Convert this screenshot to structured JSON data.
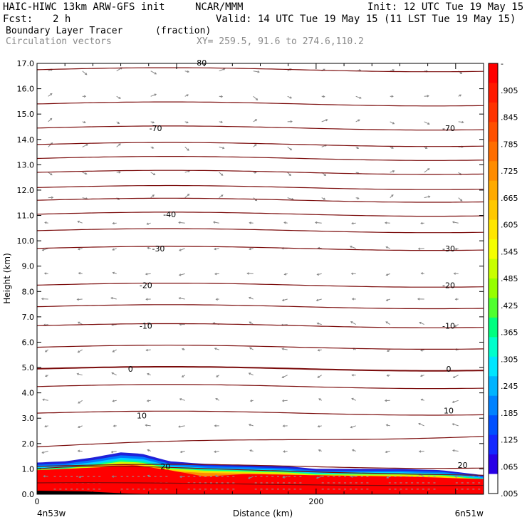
{
  "header": {
    "model": "HAIC-HIWC 13km ARW-GFS init",
    "org": "NCAR/MMM",
    "init": "Init: 12 UTC Tue 19 May 15",
    "fcst_label": "Fcst:",
    "fcst_value": "2 h",
    "valid": "Valid: 14 UTC Tue 19 May 15 (11 LST Tue 19 May 15)",
    "field": "Boundary Layer Tracer",
    "units": "(fraction)",
    "vectors": "Circulation vectors",
    "xy": "XY= 259.5, 91.6 to 274.6,110.2"
  },
  "chart_data": {
    "type": "heatmap",
    "title": "Boundary Layer Tracer",
    "xlabel": "Distance (km)",
    "ylabel": "Height (km)",
    "xlim": [
      0,
      320
    ],
    "ylim": [
      0,
      17
    ],
    "x_ticks": [
      "0",
      "200"
    ],
    "x_ticks_values": [
      0,
      200
    ],
    "y_ticks": [
      "0.0",
      "1.0",
      "2.0",
      "3.0",
      "4.0",
      "5.0",
      "6.0",
      "7.0",
      "8.0",
      "9.0",
      "10.0",
      "11.0",
      "12.0",
      "13.0",
      "14.0",
      "15.0",
      "16.0",
      "17.0"
    ],
    "y_tick_values": [
      0,
      1,
      2,
      3,
      4,
      5,
      6,
      7,
      8,
      9,
      10,
      11,
      12,
      13,
      14,
      15,
      16,
      17
    ],
    "x_endpoints": [
      "4n53w",
      "6n51w"
    ],
    "colorbar": {
      "labels": [
        "-",
        ".905",
        ".845",
        ".785",
        ".725",
        ".665",
        ".605",
        ".545",
        ".485",
        ".425",
        ".365",
        ".305",
        ".245",
        ".185",
        ".125",
        ".065",
        ".005"
      ],
      "colors": [
        "#ff0000",
        "#ff1a00",
        "#ff3300",
        "#ff5000",
        "#ff6e00",
        "#ff8c00",
        "#ffaa00",
        "#ffc800",
        "#ffe600",
        "#f5ff00",
        "#c8ff00",
        "#96ff00",
        "#50ff30",
        "#00ff80",
        "#00ffcc",
        "#00e6ff",
        "#00b4ff",
        "#0082ff",
        "#0050ff",
        "#1428ff",
        "#2800e6",
        "#ffffff"
      ]
    },
    "tracer_top_km": [
      {
        "x": 0,
        "h": 1.25
      },
      {
        "x": 20,
        "h": 1.3
      },
      {
        "x": 40,
        "h": 1.45
      },
      {
        "x": 60,
        "h": 1.65
      },
      {
        "x": 75,
        "h": 1.6
      },
      {
        "x": 95,
        "h": 1.3
      },
      {
        "x": 120,
        "h": 1.2
      },
      {
        "x": 150,
        "h": 1.15
      },
      {
        "x": 180,
        "h": 1.1
      },
      {
        "x": 200,
        "h": 1.0
      },
      {
        "x": 230,
        "h": 1.0
      },
      {
        "x": 260,
        "h": 1.0
      },
      {
        "x": 290,
        "h": 0.95
      },
      {
        "x": 320,
        "h": 0.75
      }
    ],
    "red_top_km": [
      {
        "x": 0,
        "h": 0.95
      },
      {
        "x": 40,
        "h": 1.05
      },
      {
        "x": 70,
        "h": 1.15
      },
      {
        "x": 95,
        "h": 0.95
      },
      {
        "x": 120,
        "h": 0.7
      },
      {
        "x": 150,
        "h": 0.8
      },
      {
        "x": 200,
        "h": 0.75
      },
      {
        "x": 260,
        "h": 0.7
      },
      {
        "x": 320,
        "h": 0.6
      }
    ],
    "temperature_contours": [
      {
        "label": "-70",
        "label_positions": [
          [
            85,
            14.45
          ],
          [
            295,
            14.45
          ]
        ],
        "level": 14.45
      },
      {
        "label": "-40",
        "label_positions": [
          [
            95,
            11.05
          ]
        ],
        "level": 11.05
      },
      {
        "label": "-30",
        "label_positions": [
          [
            87,
            9.7
          ],
          [
            295,
            9.7
          ]
        ],
        "level": 9.7
      },
      {
        "label": "-20",
        "label_positions": [
          [
            78,
            8.25
          ],
          [
            295,
            8.25
          ]
        ],
        "level": 8.25
      },
      {
        "label": "-10",
        "label_positions": [
          [
            78,
            6.65
          ],
          [
            295,
            6.65
          ]
        ],
        "level": 6.65
      },
      {
        "label": "0",
        "label_positions": [
          [
            67,
            4.95
          ],
          [
            295,
            4.95
          ]
        ],
        "level": 4.95
      },
      {
        "label": "10",
        "label_positions": [
          [
            75,
            3.1
          ],
          [
            295,
            3.3
          ]
        ],
        "level": 3.2
      },
      {
        "label": "20",
        "label_positions": [
          [
            92,
            1.1
          ],
          [
            305,
            1.15
          ]
        ],
        "level": 1.1
      }
    ],
    "extra_contours_km": [
      16.75,
      15.4,
      13.8,
      13.25,
      12.7,
      12.1,
      11.6,
      10.4,
      7.4,
      5.8,
      2.35,
      4.25
    ],
    "top_partial_label": "-80"
  }
}
